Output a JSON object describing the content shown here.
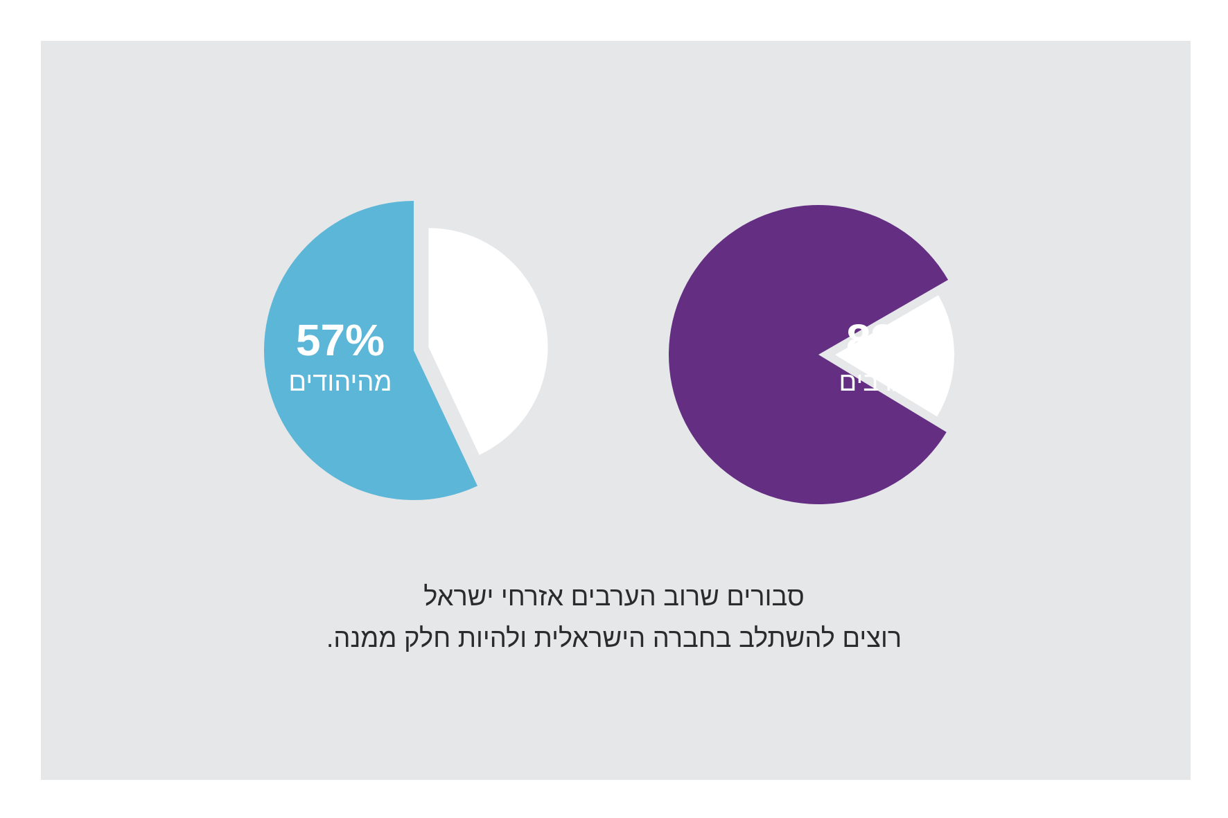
{
  "chart_data": [
    {
      "type": "pie",
      "value_label": "57%",
      "group_label": "מהיהודים",
      "slices": [
        {
          "value": 57,
          "color": "#5bb6d8"
        },
        {
          "value": 43,
          "color": "#ffffff"
        }
      ]
    },
    {
      "type": "pie",
      "value_label": "83%",
      "group_label": "מהערבים",
      "slices": [
        {
          "value": 83,
          "color": "#642e83"
        },
        {
          "value": 17,
          "color": "#ffffff"
        }
      ]
    }
  ],
  "caption": {
    "line1": "סבורים שרוב הערבים אזרחי ישראל",
    "line2": "רוצים להשתלב בחברה הישראלית ולהיות חלק ממנה."
  },
  "colors": {
    "background": "#e6e7e9",
    "jews": "#5bb6d8",
    "arabs": "#642e83"
  }
}
